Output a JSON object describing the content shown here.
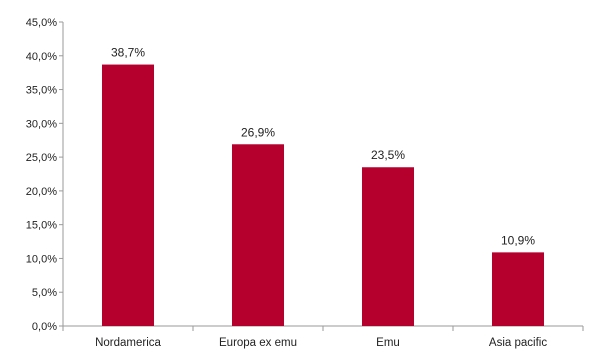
{
  "chart_data": {
    "type": "bar",
    "categories": [
      "Nordamerica",
      "Europa ex emu",
      "Emu",
      "Asia pacific"
    ],
    "values": [
      38.7,
      26.9,
      23.5,
      10.9
    ],
    "data_labels": [
      "38,7%",
      "26,9%",
      "23,5%",
      "10,9%"
    ],
    "y_ticks": [
      0,
      5,
      10,
      15,
      20,
      25,
      30,
      35,
      40,
      45
    ],
    "y_tick_labels": [
      "0,0%",
      "5,0%",
      "10,0%",
      "15,0%",
      "20,0%",
      "25,0%",
      "30,0%",
      "35,0%",
      "40,0%",
      "45,0%"
    ],
    "ylim": [
      0,
      45
    ],
    "grid": false,
    "legend": "none",
    "colors": {
      "bar": "#b5002d",
      "axis": "#9a9a9a"
    }
  }
}
